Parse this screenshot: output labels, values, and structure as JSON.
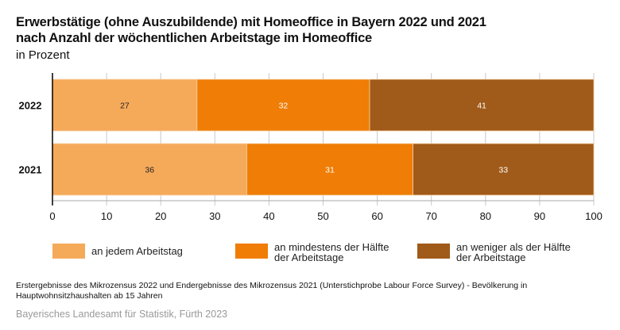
{
  "chart_data": {
    "type": "bar",
    "orientation": "horizontal",
    "stacked": true,
    "title": "Erwerbstätige (ohne Auszubildende) mit Homeoffice in Bayern 2022 und 2021 nach Anzahl der wöchentlichen Arbeitstage im Homeoffice",
    "title_lines": [
      "Erwerbstätige (ohne Auszubildende) mit Homeoffice in Bayern 2022 und 2021",
      "nach Anzahl der wöchentlichen Arbeitstage im Homeoffice"
    ],
    "subtitle": "in Prozent",
    "categories": [
      "2022",
      "2021"
    ],
    "series": [
      {
        "name": "an jedem Arbeitstag",
        "label_lines": [
          "an jedem Arbeitstag"
        ],
        "color": "#F5AA5A",
        "label_color": "#222222",
        "values": [
          27,
          36
        ],
        "exact_values": [
          26.7,
          35.9
        ]
      },
      {
        "name": "an mindestens der Hälfte der Arbeitstage",
        "label_lines": [
          "an mindestens der Hälfte",
          "der Arbeitstage"
        ],
        "color": "#F07D05",
        "label_color": "#ffffff",
        "values": [
          32,
          31
        ],
        "exact_values": [
          31.9,
          30.7
        ]
      },
      {
        "name": "an weniger als der Hälfte der Arbeitstage",
        "label_lines": [
          "an weniger als der Hälfte",
          "der Arbeitstage"
        ],
        "color": "#A05A19",
        "label_color": "#ffffff",
        "values": [
          41,
          33
        ],
        "exact_values": [
          41.4,
          33.4
        ]
      }
    ],
    "xlim": [
      0,
      100
    ],
    "xticks": [
      0,
      10,
      20,
      30,
      40,
      50,
      60,
      70,
      80,
      90,
      100
    ],
    "xlabel": "",
    "ylabel": "",
    "grid": true,
    "legend_position": "bottom"
  },
  "footer": {
    "source": "Erstergebnisse des Mikrozensus 2022 und Endergebnisse des Mikrozensus 2021 (Unterstichprobe Labour Force Survey) - Bevölkerung in Hauptwohnsitzhaushalten ab 15 Jahren",
    "credit": "Bayerisches Landesamt für Statistik, Fürth 2023"
  }
}
